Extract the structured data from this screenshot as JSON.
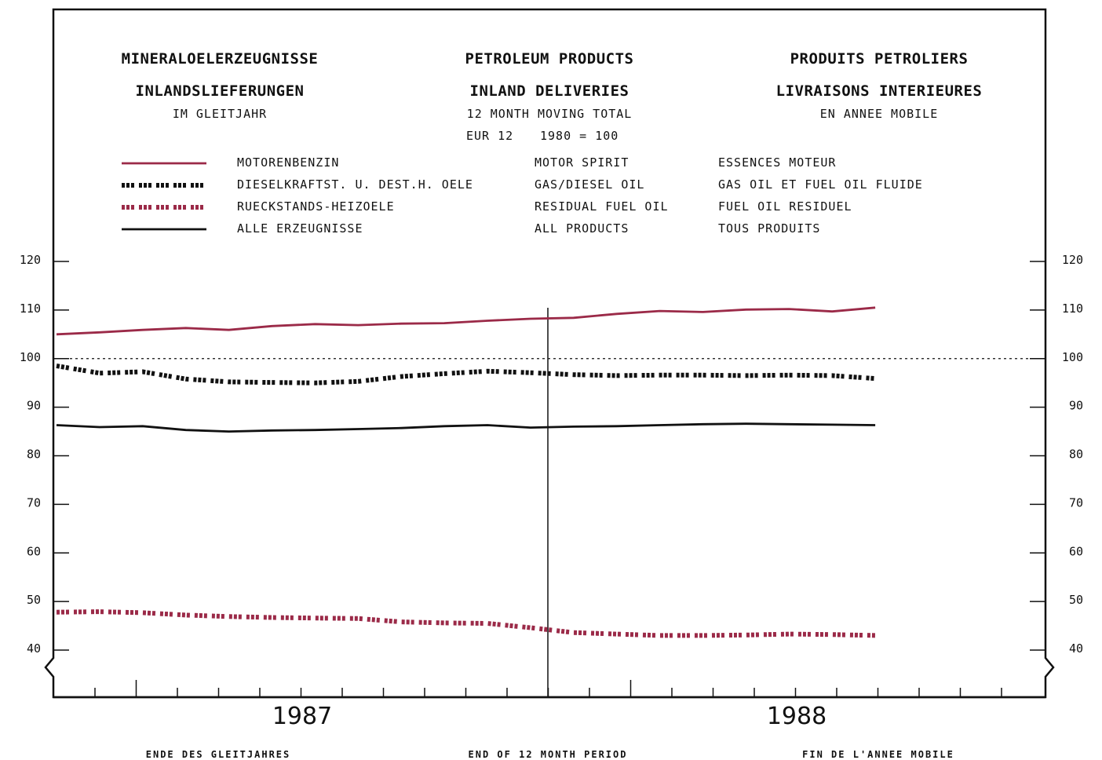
{
  "header": {
    "de_title": "MINERALOELERZEUGNISSE",
    "de_sub": "INLANDSLIEFERUNGEN",
    "de_note": "IM GLEITJAHR",
    "en_title": "PETROLEUM PRODUCTS",
    "en_sub": "INLAND DELIVERIES",
    "en_note": "12 MONTH MOVING TOTAL",
    "en_base_region": "EUR 12",
    "en_base": "1980 = 100",
    "fr_title": "PRODUITS PETROLIERS",
    "fr_sub": "LIVRAISONS INTERIEURES",
    "fr_note": "EN ANNEE MOBILE"
  },
  "legend": [
    {
      "de": "MOTORENBENZIN",
      "en": "MOTOR SPIRIT",
      "fr": "ESSENCES MOTEUR",
      "color": "#9b2a48",
      "style": "solid"
    },
    {
      "de": "DIESELKRAFTST. U. DEST.H. OELE",
      "en": "GAS/DIESEL OIL",
      "fr": "GAS OIL ET FUEL OIL FLUIDE",
      "color": "#111111",
      "style": "dashed"
    },
    {
      "de": "RUECKSTANDS-HEIZOELE",
      "en": "RESIDUAL FUEL OIL",
      "fr": "FUEL OIL RESIDUEL",
      "color": "#9b2a48",
      "style": "dashed"
    },
    {
      "de": "ALLE ERZEUGNISSE",
      "en": "ALL PRODUCTS",
      "fr": "TOUS PRODUITS",
      "color": "#111111",
      "style": "solid"
    }
  ],
  "footer": {
    "de": "ENDE DES GLEITJAHRES",
    "en": "END OF 12 MONTH PERIOD",
    "fr": "FIN DE L'ANNEE MOBILE"
  },
  "chart_data": {
    "type": "line",
    "x": [
      "1987-01",
      "1987-02",
      "1987-03",
      "1987-04",
      "1987-05",
      "1987-06",
      "1987-07",
      "1987-08",
      "1987-09",
      "1987-10",
      "1987-11",
      "1987-12",
      "1988-01",
      "1988-02",
      "1988-03",
      "1988-04",
      "1988-05",
      "1988-06",
      "1988-07",
      "1988-08"
    ],
    "x_tick_labels": [
      "1987",
      "1988"
    ],
    "ylim": [
      40,
      120
    ],
    "y_ticks": [
      40,
      50,
      60,
      70,
      80,
      90,
      100,
      110,
      120
    ],
    "reference_line": 100,
    "series": [
      {
        "name": "MOTORENBENZIN",
        "color": "#9b2a48",
        "style": "solid",
        "values": [
          105.0,
          105.4,
          105.9,
          106.3,
          105.9,
          106.7,
          107.1,
          106.9,
          107.2,
          107.3,
          107.8,
          108.2,
          108.4,
          109.2,
          109.8,
          109.6,
          110.1,
          110.2,
          109.7,
          110.5
        ]
      },
      {
        "name": "DIESELKRAFTST. U. DEST.H. OELE",
        "color": "#111111",
        "style": "dashed",
        "values": [
          98.5,
          97.0,
          97.3,
          95.8,
          95.2,
          95.1,
          95.0,
          95.3,
          96.3,
          96.9,
          97.4,
          97.1,
          96.7,
          96.5,
          96.6,
          96.6,
          96.5,
          96.6,
          96.5,
          95.9
        ]
      },
      {
        "name": "RUECKSTANDS-HEIZOELE",
        "color": "#9b2a48",
        "style": "dashed",
        "values": [
          47.8,
          47.9,
          47.7,
          47.2,
          46.9,
          46.7,
          46.6,
          46.5,
          45.8,
          45.6,
          45.5,
          44.6,
          43.6,
          43.3,
          43.0,
          43.0,
          43.1,
          43.3,
          43.2,
          43.0
        ]
      },
      {
        "name": "ALLE ERZEUGNISSE",
        "color": "#111111",
        "style": "solid",
        "values": [
          86.3,
          85.9,
          86.1,
          85.3,
          85.0,
          85.2,
          85.3,
          85.5,
          85.7,
          86.1,
          86.3,
          85.8,
          86.0,
          86.1,
          86.3,
          86.5,
          86.6,
          86.5,
          86.4,
          86.3
        ]
      }
    ]
  }
}
